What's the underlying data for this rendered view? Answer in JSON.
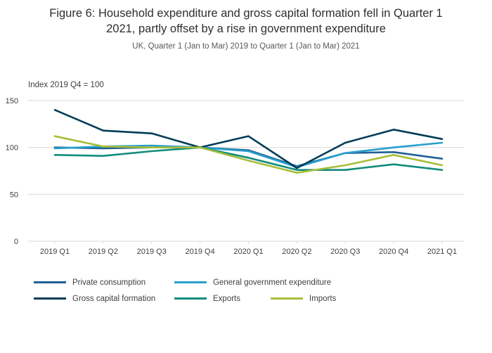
{
  "header": {
    "title": "Figure 6: Household expenditure and gross capital formation fell in Quarter 1 2021, partly offset by a rise in government expenditure",
    "subtitle": "UK, Quarter 1 (Jan to Mar) 2019 to Quarter 1 (Jan to Mar) 2021"
  },
  "chart_data": {
    "type": "line",
    "index_label": "Index 2019 Q4 = 100",
    "categories": [
      "2019 Q1",
      "2019 Q2",
      "2019 Q3",
      "2019 Q4",
      "2020 Q1",
      "2020 Q2",
      "2020 Q3",
      "2020 Q4",
      "2021 Q1"
    ],
    "series": [
      {
        "name": "Private consumption",
        "color": "#206095",
        "values": [
          100,
          99,
          100,
          100,
          97,
          80,
          94,
          95,
          88
        ]
      },
      {
        "name": "General government expenditure",
        "color": "#27a0cc",
        "values": [
          99,
          101,
          102,
          100,
          96,
          79,
          94,
          100,
          105
        ]
      },
      {
        "name": "Gross capital formation",
        "color": "#003c57",
        "values": [
          140,
          118,
          115,
          100,
          112,
          78,
          105,
          119,
          109
        ]
      },
      {
        "name": "Exports",
        "color": "#118c7b",
        "values": [
          92,
          91,
          96,
          100,
          89,
          76,
          76,
          82,
          76
        ]
      },
      {
        "name": "Imports",
        "color": "#a8bd3a",
        "values": [
          112,
          101,
          100,
          100,
          86,
          73,
          81,
          92,
          81
        ]
      }
    ],
    "ylim": [
      0,
      150
    ],
    "yticks": [
      0,
      50,
      100,
      150
    ],
    "grid": true,
    "legend_position": "bottom",
    "colors": {
      "grid": "#d9d9d9",
      "axis_text": "#414042"
    }
  }
}
